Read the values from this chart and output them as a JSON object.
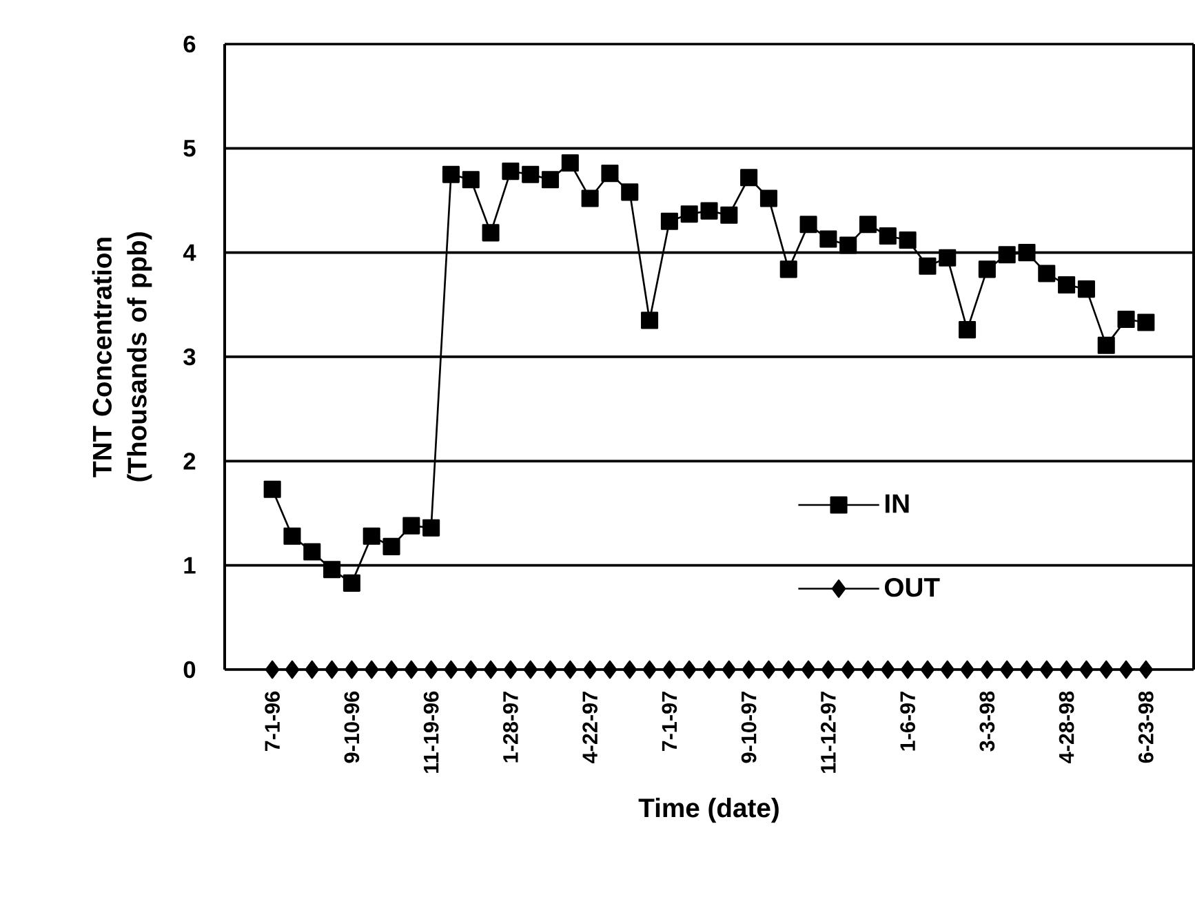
{
  "chart_data": {
    "type": "line",
    "xlabel": "Time (date)",
    "ylabel": "TNT Concentration (Thousands of ppb)",
    "categories": [
      "7-1-96",
      null,
      null,
      null,
      "9-10-96",
      null,
      null,
      null,
      "11-19-96",
      null,
      null,
      null,
      "1-28-97",
      null,
      null,
      null,
      "4-22-97",
      null,
      null,
      null,
      "7-1-97",
      null,
      null,
      null,
      "9-10-97",
      null,
      null,
      null,
      "11-12-97",
      null,
      null,
      null,
      "1-6-97",
      null,
      null,
      null,
      "3-3-98",
      null,
      null,
      null,
      "4-28-98",
      null,
      null,
      null,
      "6-23-98"
    ],
    "series": [
      {
        "name": "IN",
        "color": "#000000",
        "marker": "square",
        "values": [
          1.73,
          1.28,
          1.13,
          0.96,
          0.83,
          1.28,
          1.18,
          1.38,
          1.36,
          4.75,
          4.7,
          4.19,
          4.78,
          4.75,
          4.7,
          4.86,
          4.52,
          4.76,
          4.58,
          3.35,
          4.3,
          4.37,
          4.4,
          4.36,
          4.72,
          4.52,
          3.84,
          4.27,
          4.13,
          4.07,
          4.27,
          4.16,
          4.12,
          3.87,
          3.95,
          3.26,
          3.84,
          3.98,
          4.0,
          3.8,
          3.69,
          3.65,
          3.11,
          3.36,
          3.33
        ]
      },
      {
        "name": "OUT",
        "color": "#000000",
        "marker": "diamond",
        "values": [
          0,
          0,
          0,
          0,
          0,
          0,
          0,
          0,
          0,
          0,
          0,
          0,
          0,
          0,
          0,
          0,
          0,
          0,
          0,
          0,
          0,
          0,
          0,
          0,
          0,
          0,
          0,
          0,
          0,
          0,
          0,
          0,
          0,
          0,
          0,
          0,
          0,
          0,
          0,
          0,
          0,
          0,
          0,
          0,
          0
        ]
      }
    ],
    "ylim": [
      0,
      6
    ],
    "yticks": [
      0,
      1,
      2,
      3,
      4,
      5,
      6
    ],
    "grid": "y",
    "legend": "right",
    "line_style": "solid"
  }
}
